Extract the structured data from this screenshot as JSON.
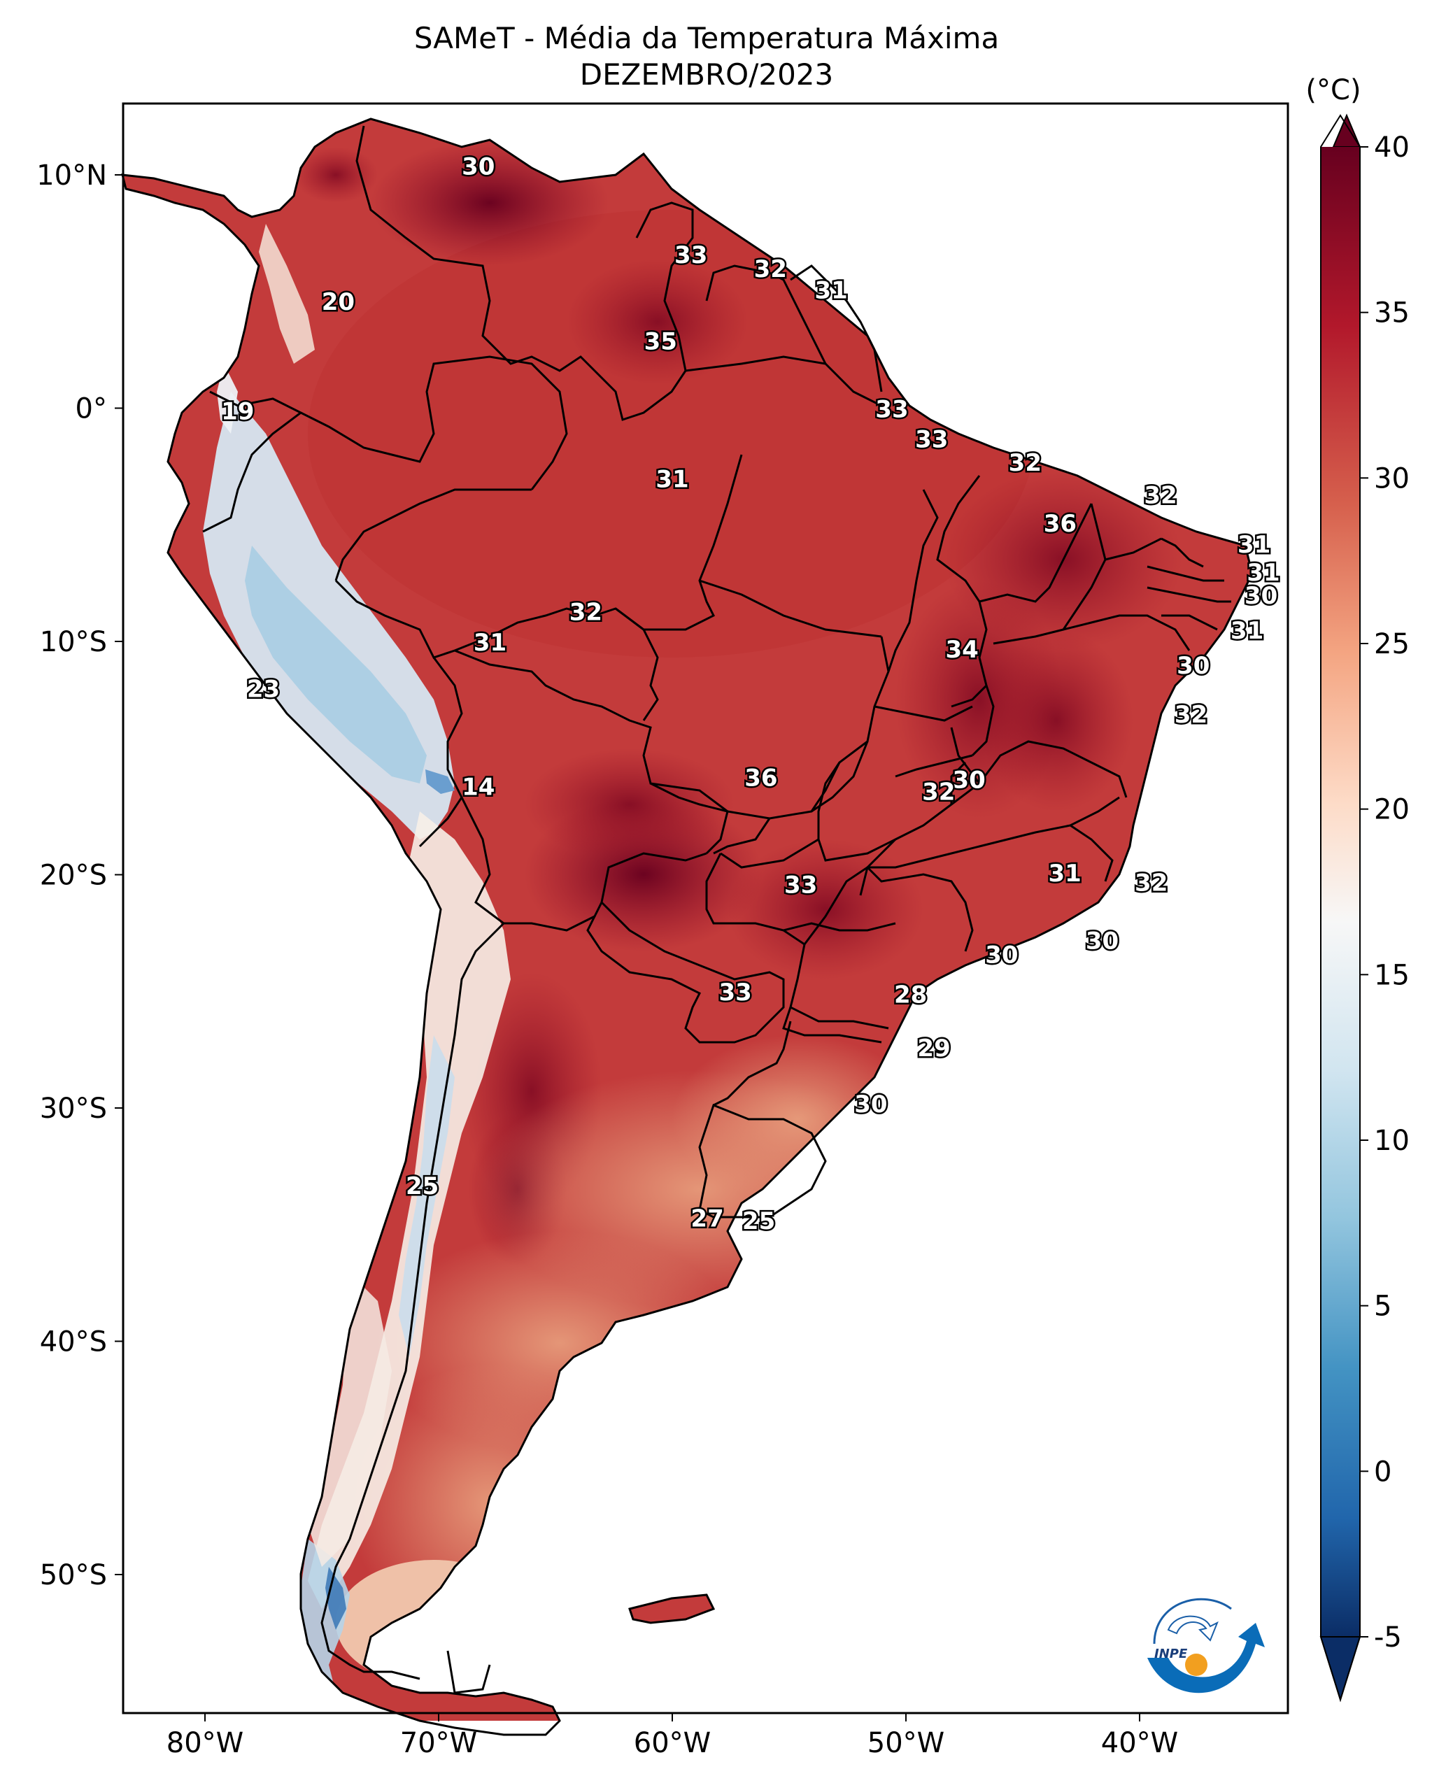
{
  "title": "SAMeT - Média da Temperatura Máxima",
  "subtitle": "DEZEMBRO/2023",
  "colorbar": {
    "unit_label": "(°C)",
    "ticks": [
      "40",
      "35",
      "30",
      "25",
      "20",
      "15",
      "10",
      "5",
      "0",
      "-5"
    ],
    "range": [
      -5,
      40
    ],
    "colors": [
      "#0b2d66",
      "#2166ac",
      "#4393c3",
      "#92c5de",
      "#d1e5f0",
      "#f7f7f7",
      "#fddbc7",
      "#f4a582",
      "#d6604d",
      "#b2182b",
      "#67001f"
    ]
  },
  "axes": {
    "lon_labels": [
      "80°W",
      "70°W",
      "60°W",
      "50°W",
      "40°W"
    ],
    "lat_labels": [
      "10°N",
      "0°",
      "10°S",
      "20°S",
      "30°S",
      "40°S",
      "50°S"
    ]
  },
  "temperature_labels": [
    {
      "text": "30",
      "lon": -68.3,
      "lat": 10.3
    },
    {
      "text": "33",
      "lon": -59.2,
      "lat": 6.5
    },
    {
      "text": "32",
      "lon": -55.8,
      "lat": 5.9
    },
    {
      "text": "31",
      "lon": -53.2,
      "lat": 5.0
    },
    {
      "text": "20",
      "lon": -74.3,
      "lat": 4.5
    },
    {
      "text": "35",
      "lon": -60.5,
      "lat": 2.8
    },
    {
      "text": "19",
      "lon": -78.6,
      "lat": -0.2
    },
    {
      "text": "33",
      "lon": -50.6,
      "lat": -0.1
    },
    {
      "text": "33",
      "lon": -48.9,
      "lat": -1.4
    },
    {
      "text": "31",
      "lon": -60.0,
      "lat": -3.1
    },
    {
      "text": "32",
      "lon": -44.9,
      "lat": -2.4
    },
    {
      "text": "32",
      "lon": -39.1,
      "lat": -3.8
    },
    {
      "text": "36",
      "lon": -43.4,
      "lat": -5.0
    },
    {
      "text": "31",
      "lon": -35.1,
      "lat": -5.9
    },
    {
      "text": "31",
      "lon": -34.7,
      "lat": -7.1
    },
    {
      "text": "30",
      "lon": -34.8,
      "lat": -8.1
    },
    {
      "text": "32",
      "lon": -63.7,
      "lat": -8.8
    },
    {
      "text": "31",
      "lon": -67.8,
      "lat": -10.1
    },
    {
      "text": "31",
      "lon": -35.4,
      "lat": -9.6
    },
    {
      "text": "34",
      "lon": -47.6,
      "lat": -10.4
    },
    {
      "text": "30",
      "lon": -37.7,
      "lat": -11.1
    },
    {
      "text": "23",
      "lon": -77.5,
      "lat": -12.1
    },
    {
      "text": "32",
      "lon": -37.8,
      "lat": -13.2
    },
    {
      "text": "36",
      "lon": -56.2,
      "lat": -15.9
    },
    {
      "text": "30",
      "lon": -47.3,
      "lat": -16.0
    },
    {
      "text": "32",
      "lon": -48.6,
      "lat": -16.5
    },
    {
      "text": "14",
      "lon": -68.3,
      "lat": -16.3
    },
    {
      "text": "31",
      "lon": -43.2,
      "lat": -20.0
    },
    {
      "text": "32",
      "lon": -39.5,
      "lat": -20.4
    },
    {
      "text": "33",
      "lon": -54.5,
      "lat": -20.5
    },
    {
      "text": "30",
      "lon": -41.6,
      "lat": -22.9
    },
    {
      "text": "30",
      "lon": -45.9,
      "lat": -23.5
    },
    {
      "text": "33",
      "lon": -57.3,
      "lat": -25.1
    },
    {
      "text": "28",
      "lon": -49.8,
      "lat": -25.2
    },
    {
      "text": "29",
      "lon": -48.8,
      "lat": -27.5
    },
    {
      "text": "30",
      "lon": -51.5,
      "lat": -29.9
    },
    {
      "text": "25",
      "lon": -70.7,
      "lat": -33.4
    },
    {
      "text": "27",
      "lon": -58.5,
      "lat": -34.8
    },
    {
      "text": "25",
      "lon": -56.3,
      "lat": -34.9
    }
  ],
  "logo": {
    "text": "INPE"
  }
}
